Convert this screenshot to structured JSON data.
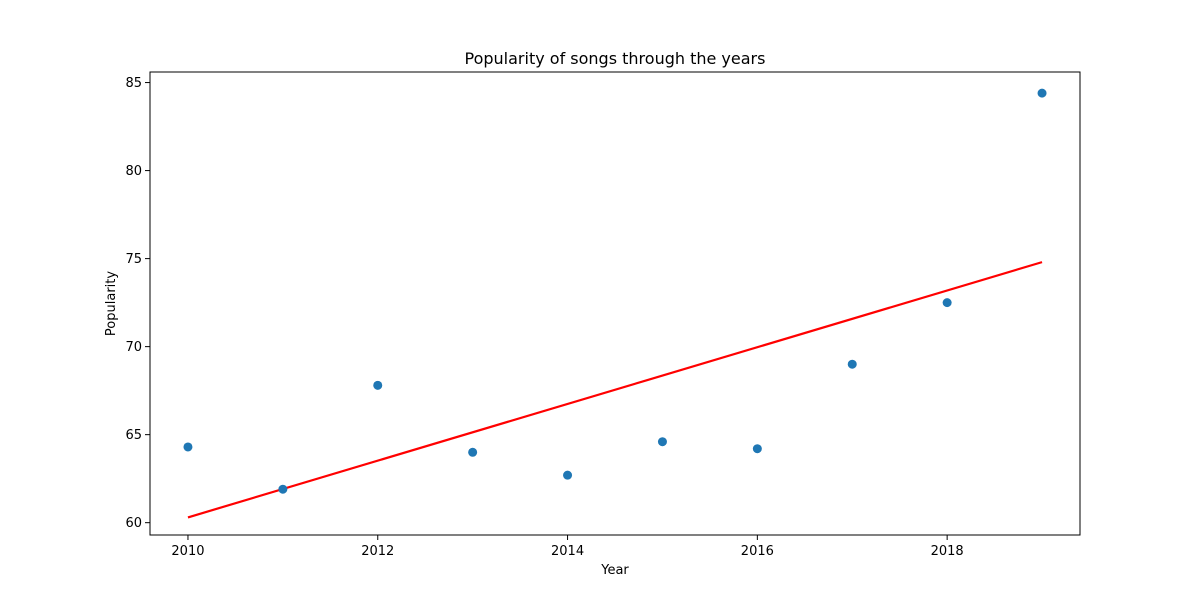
{
  "chart_data": {
    "type": "scatter",
    "title": "Popularity of songs through the years",
    "xlabel": "Year",
    "ylabel": "Popularity",
    "xlim": [
      2009.6,
      2019.4
    ],
    "ylim": [
      59.3,
      85.6
    ],
    "xticks": [
      2010,
      2012,
      2014,
      2016,
      2018
    ],
    "yticks": [
      60,
      65,
      70,
      75,
      80,
      85
    ],
    "grid": false,
    "series": [
      {
        "kind": "scatter",
        "color": "#1f77b4",
        "x": [
          2010,
          2011,
          2012,
          2013,
          2014,
          2015,
          2016,
          2017,
          2018,
          2019
        ],
        "y": [
          64.3,
          61.9,
          67.8,
          64.0,
          62.7,
          64.6,
          64.2,
          69.0,
          72.5,
          84.4
        ]
      },
      {
        "kind": "line",
        "color": "#ff0000",
        "x": [
          2010,
          2019
        ],
        "y": [
          60.3,
          74.8
        ]
      }
    ]
  }
}
